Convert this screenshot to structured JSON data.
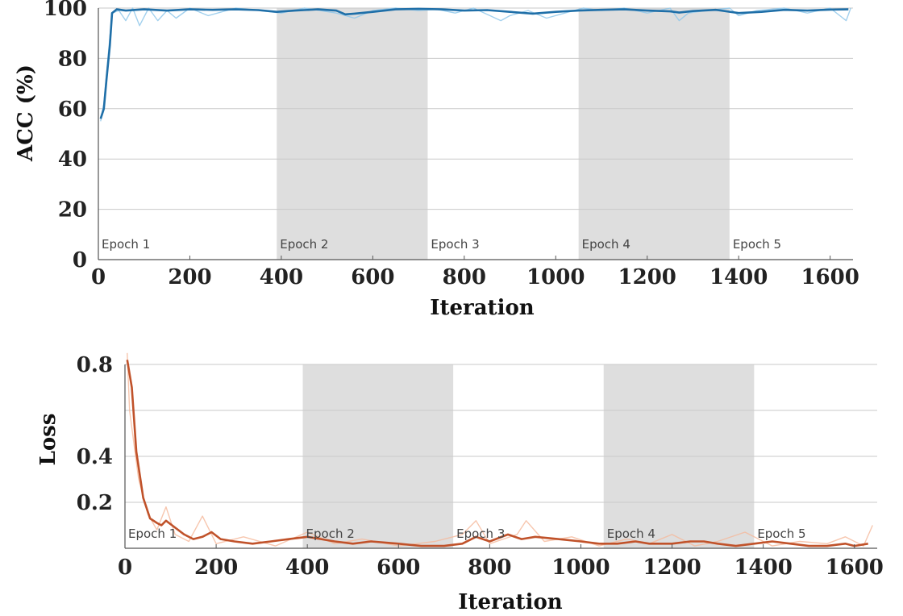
{
  "chart_data": [
    {
      "type": "line",
      "xlabel": "Iteration",
      "ylabel": "ACC (%)",
      "xlim": [
        0,
        1650
      ],
      "ylim": [
        0,
        100
      ],
      "xticks": [
        0,
        200,
        400,
        600,
        800,
        1000,
        1200,
        1400,
        1600
      ],
      "yticks": [
        0,
        20,
        40,
        60,
        80,
        100
      ],
      "grid": "horizontal",
      "colors": {
        "smoothed": "#1f6fa8",
        "raw": "#8cc6ea",
        "band": "#dedede"
      },
      "epochs": [
        {
          "label": "Epoch 1",
          "start": 0,
          "end": 390,
          "shaded": false
        },
        {
          "label": "Epoch 2",
          "start": 390,
          "end": 720,
          "shaded": true
        },
        {
          "label": "Epoch 3",
          "start": 720,
          "end": 1050,
          "shaded": false
        },
        {
          "label": "Epoch 4",
          "start": 1050,
          "end": 1380,
          "shaded": true
        },
        {
          "label": "Epoch 5",
          "start": 1380,
          "end": 1650,
          "shaded": false
        }
      ],
      "series": [
        {
          "role": "smoothed",
          "x": [
            5,
            12,
            18,
            25,
            30,
            40,
            60,
            100,
            150,
            200,
            250,
            300,
            350,
            390,
            430,
            480,
            520,
            540,
            560,
            600,
            650,
            700,
            750,
            800,
            850,
            900,
            950,
            1000,
            1050,
            1100,
            1150,
            1200,
            1250,
            1270,
            1300,
            1350,
            1400,
            1450,
            1500,
            1550,
            1600,
            1640
          ],
          "y": [
            56,
            60,
            72,
            85,
            98,
            99.5,
            99,
            99.5,
            99,
            99.5,
            99.3,
            99.5,
            99.2,
            98.5,
            99,
            99.5,
            99,
            97.5,
            97.8,
            98.5,
            99.5,
            99.7,
            99.5,
            99,
            99.2,
            98.5,
            97.8,
            98.5,
            99,
            99.3,
            99.5,
            99,
            98.7,
            98.2,
            98.8,
            99.3,
            98,
            98.5,
            99.3,
            99,
            99.4,
            99.5
          ]
        },
        {
          "role": "raw",
          "x": [
            5,
            12,
            20,
            30,
            45,
            60,
            75,
            90,
            110,
            130,
            150,
            170,
            200,
            240,
            300,
            350,
            400,
            450,
            520,
            560,
            600,
            650,
            700,
            740,
            780,
            820,
            880,
            900,
            940,
            980,
            1020,
            1060,
            1100,
            1150,
            1200,
            1250,
            1270,
            1290,
            1330,
            1380,
            1400,
            1440,
            1500,
            1550,
            1600,
            1635,
            1645
          ],
          "y": [
            55,
            62,
            78,
            98,
            99,
            95,
            100,
            93,
            100,
            95,
            99,
            96,
            100,
            97,
            100,
            99,
            98,
            100,
            98,
            96,
            99,
            100,
            99,
            99.5,
            98,
            100,
            95,
            97,
            99,
            96,
            98,
            100,
            99,
            100,
            98,
            100,
            95,
            98,
            99,
            100,
            97,
            99,
            100,
            98,
            100,
            95,
            100
          ]
        }
      ]
    },
    {
      "type": "line",
      "xlabel": "Iteration",
      "ylabel": "Loss",
      "xlim": [
        0,
        1650
      ],
      "ylim": [
        0,
        0.8
      ],
      "xticks": [
        0,
        200,
        400,
        600,
        800,
        1000,
        1200,
        1400,
        1600
      ],
      "yticks": [
        0.2,
        0.4,
        0.8
      ],
      "gridlines": [
        0.2,
        0.4,
        0.6,
        0.8
      ],
      "grid": "horizontal",
      "colors": {
        "smoothed": "#c0522a",
        "raw": "#f5b89a",
        "band": "#dedede"
      },
      "epochs": [
        {
          "label": "Epoch 1",
          "start": 0,
          "end": 390,
          "shaded": false
        },
        {
          "label": "Epoch 2",
          "start": 390,
          "end": 720,
          "shaded": true
        },
        {
          "label": "Epoch 3",
          "start": 720,
          "end": 1050,
          "shaded": false
        },
        {
          "label": "Epoch 4",
          "start": 1050,
          "end": 1380,
          "shaded": true
        },
        {
          "label": "Epoch 5",
          "start": 1380,
          "end": 1650,
          "shaded": false
        }
      ],
      "series": [
        {
          "role": "smoothed",
          "x": [
            5,
            15,
            25,
            40,
            55,
            70,
            80,
            90,
            110,
            130,
            150,
            170,
            190,
            210,
            240,
            280,
            320,
            360,
            400,
            430,
            460,
            500,
            540,
            600,
            650,
            700,
            740,
            770,
            800,
            840,
            870,
            900,
            950,
            1000,
            1040,
            1080,
            1120,
            1150,
            1200,
            1240,
            1270,
            1300,
            1340,
            1380,
            1420,
            1460,
            1500,
            1540,
            1580,
            1600,
            1630
          ],
          "y": [
            0.82,
            0.7,
            0.42,
            0.22,
            0.13,
            0.11,
            0.1,
            0.12,
            0.09,
            0.06,
            0.04,
            0.05,
            0.07,
            0.04,
            0.03,
            0.02,
            0.03,
            0.04,
            0.05,
            0.04,
            0.03,
            0.02,
            0.03,
            0.02,
            0.01,
            0.01,
            0.02,
            0.05,
            0.03,
            0.06,
            0.04,
            0.05,
            0.04,
            0.03,
            0.02,
            0.02,
            0.03,
            0.02,
            0.02,
            0.03,
            0.03,
            0.02,
            0.01,
            0.02,
            0.03,
            0.02,
            0.01,
            0.01,
            0.02,
            0.01,
            0.02
          ]
        },
        {
          "role": "raw",
          "x": [
            5,
            10,
            20,
            30,
            50,
            70,
            90,
            110,
            140,
            170,
            200,
            260,
            330,
            400,
            460,
            520,
            600,
            680,
            740,
            770,
            800,
            860,
            880,
            920,
            980,
            1040,
            1100,
            1150,
            1200,
            1250,
            1300,
            1360,
            1420,
            1480,
            1540,
            1580,
            1620,
            1640
          ],
          "y": [
            0.85,
            0.6,
            0.45,
            0.3,
            0.15,
            0.08,
            0.18,
            0.06,
            0.03,
            0.14,
            0.02,
            0.05,
            0.01,
            0.07,
            0.02,
            0.04,
            0.01,
            0.03,
            0.06,
            0.12,
            0.02,
            0.06,
            0.12,
            0.03,
            0.05,
            0.01,
            0.04,
            0.02,
            0.06,
            0.01,
            0.03,
            0.07,
            0.01,
            0.03,
            0.02,
            0.05,
            0.01,
            0.1
          ]
        }
      ]
    }
  ]
}
